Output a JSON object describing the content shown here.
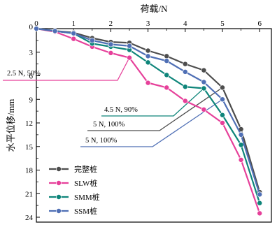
{
  "chart_data": {
    "type": "line",
    "xlabel": "荷载/N",
    "ylabel": "水平位移/mm",
    "xlim": [
      0,
      6.4
    ],
    "ylim": [
      0,
      24
    ],
    "y_inverted": true,
    "x_axis_position": "top",
    "x_ticks": [
      "0",
      "1",
      "2",
      "3",
      "4",
      "5",
      "6"
    ],
    "y_ticks": [
      "0",
      "3",
      "6",
      "9",
      "12",
      "15",
      "18",
      "21",
      "24"
    ],
    "legend_position": "bottom-left",
    "series": [
      {
        "name": "完整桩",
        "color": "#4d4d4d",
        "x": [
          0,
          0.5,
          1.0,
          1.5,
          2.0,
          2.5,
          3.0,
          3.5,
          4.0,
          4.5,
          5.0,
          5.5,
          6.0
        ],
        "y": [
          0,
          0.3,
          0.5,
          1.2,
          1.7,
          1.8,
          2.8,
          3.5,
          4.5,
          5.3,
          7.5,
          12.8,
          20.8
        ]
      },
      {
        "name": "SLW桩",
        "color": "#e6409a",
        "x": [
          0,
          0.5,
          1.0,
          1.5,
          2.0,
          2.5,
          3.0,
          3.5,
          4.0,
          4.5,
          5.0,
          5.5,
          6.0
        ],
        "y": [
          0,
          0.4,
          1.3,
          2.3,
          3.1,
          3.7,
          6.9,
          7.5,
          9.2,
          10.3,
          12.0,
          16.7,
          23.5
        ]
      },
      {
        "name": "SMM桩",
        "color": "#0e857a",
        "x": [
          0,
          0.5,
          1.0,
          1.5,
          2.0,
          2.5,
          3.0,
          3.5,
          4.0,
          4.5,
          5.0,
          5.5,
          6.0
        ],
        "y": [
          0,
          0.3,
          0.6,
          1.9,
          2.3,
          2.7,
          4.3,
          5.9,
          7.4,
          7.6,
          11.0,
          14.8,
          22.2
        ]
      },
      {
        "name": "SSM桩",
        "color": "#4f6fb5",
        "x": [
          0,
          0.5,
          1.0,
          1.5,
          2.0,
          2.5,
          3.0,
          3.5,
          4.0,
          4.5,
          5.0,
          5.5,
          6.0
        ],
        "y": [
          0,
          0.3,
          0.6,
          1.5,
          2.0,
          2.2,
          3.5,
          4.1,
          5.5,
          6.8,
          9.0,
          13.5,
          21.1
        ]
      }
    ],
    "annotations": [
      {
        "text": "2.5 N, 50%",
        "series": "SLW桩",
        "x": 2.5,
        "y": 3.7
      },
      {
        "text": "4.5 N, 90%",
        "series": "SMM桩",
        "x": 4.5,
        "y": 7.6
      },
      {
        "text": "5 N, 100%",
        "series": "完整桩",
        "x": 5.0,
        "y": 7.5
      },
      {
        "text": "5 N, 100%",
        "series": "SSM桩",
        "x": 5.0,
        "y": 9.0
      }
    ]
  }
}
